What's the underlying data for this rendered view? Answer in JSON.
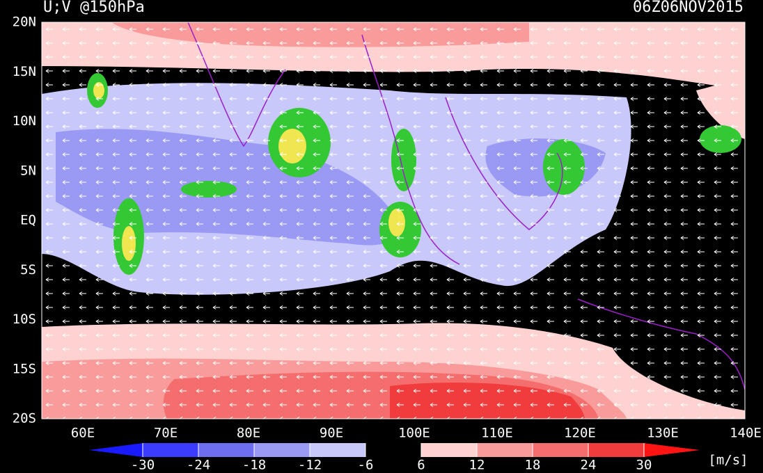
{
  "header": {
    "title": "U;V @150hPa",
    "time": "06Z06NOV2015"
  },
  "lat_labels": [
    "20N",
    "15N",
    "10N",
    "5N",
    "EQ",
    "5S",
    "10S",
    "15S",
    "20S"
  ],
  "lon_labels": [
    "60E",
    "70E",
    "80E",
    "90E",
    "100E",
    "110E",
    "120E",
    "130E",
    "140E"
  ],
  "colorbar": {
    "ticks": [
      -30,
      -24,
      -18,
      -12,
      -6,
      6,
      12,
      18,
      24,
      30
    ],
    "colors": [
      "#1a1aff",
      "#3c3cff",
      "#6e6ef0",
      "#9a9af5",
      "#c8c8fa",
      "#000000",
      "#ffd2d2",
      "#fa9b9b",
      "#f56e6e",
      "#f03c3c",
      "#ff1414"
    ],
    "unit": "[m/s]"
  }
}
